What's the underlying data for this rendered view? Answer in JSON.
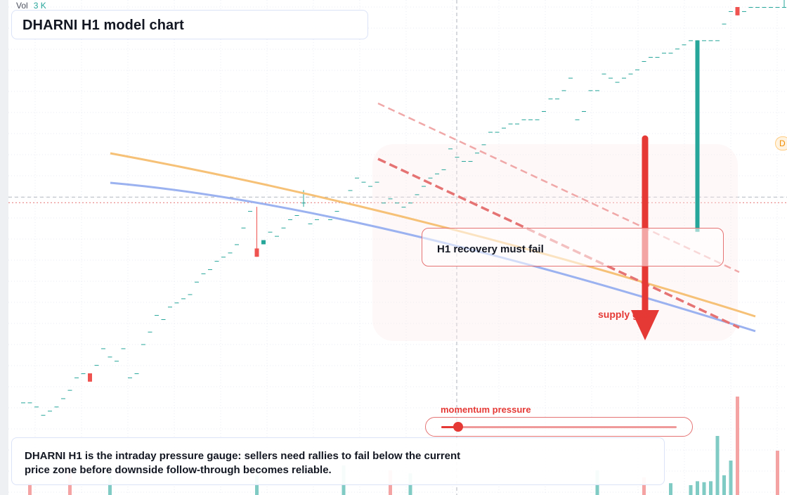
{
  "header": {
    "vol_label": "Vol",
    "vol_value": "3 K",
    "title": "DHARNI H1 model chart"
  },
  "annotations": {
    "callout": "H1 recovery must fail",
    "supply_label": "supply gate",
    "momentum_label": "momentum pressure",
    "description": "DHARNI H1 is the intraday pressure gauge: sellers need rallies to fail below the current price zone before downside follow-through becomes reliable.",
    "side_badge": "D"
  },
  "gauge": {
    "level": 0.07
  },
  "colors": {
    "up": "#26a69a",
    "down": "#ef5350",
    "down_strong": "#e53935",
    "trend_orange": "#f6c177",
    "trend_blue": "#9bb2f0",
    "channel_red": "#e57373",
    "grid": "#e8ebf3"
  },
  "chart_data": {
    "type": "candlestick",
    "y_range": [
      0,
      100
    ],
    "current_price": 53,
    "candles": [
      {
        "o": 5,
        "h": 5,
        "l": 5,
        "c": 5
      },
      {
        "o": 5,
        "h": 5,
        "l": 5,
        "c": 5
      },
      {
        "o": 4,
        "h": 4,
        "l": 4,
        "c": 4
      },
      {
        "o": 2,
        "h": 2,
        "l": 2,
        "c": 2
      },
      {
        "o": 3,
        "h": 3,
        "l": 3,
        "c": 3
      },
      {
        "o": 4,
        "h": 4,
        "l": 4,
        "c": 4
      },
      {
        "o": 6,
        "h": 6,
        "l": 6,
        "c": 6
      },
      {
        "o": 8,
        "h": 8,
        "l": 8,
        "c": 8
      },
      {
        "o": 11,
        "h": 11,
        "l": 11,
        "c": 11
      },
      {
        "o": 12,
        "h": 12,
        "l": 12,
        "c": 12
      },
      {
        "o": 12,
        "h": 12,
        "l": 10,
        "c": 10
      },
      {
        "o": 14,
        "h": 14,
        "l": 14,
        "c": 14
      },
      {
        "o": 18,
        "h": 18,
        "l": 18,
        "c": 18
      },
      {
        "o": 16,
        "h": 16,
        "l": 16,
        "c": 16
      },
      {
        "o": 15,
        "h": 15,
        "l": 15,
        "c": 15
      },
      {
        "o": 18,
        "h": 18,
        "l": 18,
        "c": 18
      },
      {
        "o": 11,
        "h": 11,
        "l": 11,
        "c": 11
      },
      {
        "o": 12,
        "h": 12,
        "l": 12,
        "c": 12
      },
      {
        "o": 19,
        "h": 19,
        "l": 19,
        "c": 19
      },
      {
        "o": 22,
        "h": 22,
        "l": 22,
        "c": 22
      },
      {
        "o": 26,
        "h": 26,
        "l": 26,
        "c": 26
      },
      {
        "o": 25,
        "h": 25,
        "l": 25,
        "c": 25
      },
      {
        "o": 28,
        "h": 28,
        "l": 28,
        "c": 28
      },
      {
        "o": 29,
        "h": 29,
        "l": 29,
        "c": 29
      },
      {
        "o": 30,
        "h": 30,
        "l": 30,
        "c": 30
      },
      {
        "o": 31,
        "h": 31,
        "l": 31,
        "c": 31
      },
      {
        "o": 34,
        "h": 34,
        "l": 34,
        "c": 34
      },
      {
        "o": 36,
        "h": 36,
        "l": 36,
        "c": 36
      },
      {
        "o": 37,
        "h": 37,
        "l": 37,
        "c": 37
      },
      {
        "o": 39,
        "h": 39,
        "l": 39,
        "c": 39
      },
      {
        "o": 40,
        "h": 40,
        "l": 40,
        "c": 40
      },
      {
        "o": 41,
        "h": 41,
        "l": 41,
        "c": 41
      },
      {
        "o": 43,
        "h": 43,
        "l": 43,
        "c": 43
      },
      {
        "o": 47,
        "h": 47,
        "l": 47,
        "c": 47
      },
      {
        "o": 51,
        "h": 51,
        "l": 51,
        "c": 51
      },
      {
        "o": 42,
        "h": 52,
        "l": 40,
        "c": 40
      },
      {
        "o": 43,
        "h": 44,
        "l": 43,
        "c": 44
      },
      {
        "o": 46,
        "h": 46,
        "l": 46,
        "c": 46
      },
      {
        "o": 45,
        "h": 45,
        "l": 45,
        "c": 45
      },
      {
        "o": 47,
        "h": 47,
        "l": 47,
        "c": 47
      },
      {
        "o": 49,
        "h": 49,
        "l": 49,
        "c": 49
      },
      {
        "o": 50,
        "h": 50,
        "l": 50,
        "c": 50
      },
      {
        "o": 53,
        "h": 56,
        "l": 52,
        "c": 53
      },
      {
        "o": 48,
        "h": 48,
        "l": 48,
        "c": 48
      },
      {
        "o": 49,
        "h": 49,
        "l": 49,
        "c": 49
      },
      {
        "o": 50,
        "h": 50,
        "l": 50,
        "c": 50
      },
      {
        "o": 49,
        "h": 49,
        "l": 49,
        "c": 49
      },
      {
        "o": 51,
        "h": 51,
        "l": 51,
        "c": 51
      },
      {
        "o": 53,
        "h": 53,
        "l": 53,
        "c": 53
      },
      {
        "o": 56,
        "h": 56,
        "l": 56,
        "c": 56
      },
      {
        "o": 59,
        "h": 59,
        "l": 59,
        "c": 59
      },
      {
        "o": 58,
        "h": 58,
        "l": 58,
        "c": 58
      },
      {
        "o": 57,
        "h": 57,
        "l": 57,
        "c": 57
      },
      {
        "o": 58,
        "h": 58,
        "l": 58,
        "c": 58
      },
      {
        "o": 53,
        "h": 53,
        "l": 53,
        "c": 53
      },
      {
        "o": 54,
        "h": 54,
        "l": 54,
        "c": 54
      },
      {
        "o": 53,
        "h": 53,
        "l": 53,
        "c": 53
      },
      {
        "o": 52,
        "h": 52,
        "l": 52,
        "c": 52
      },
      {
        "o": 53,
        "h": 53,
        "l": 53,
        "c": 53
      },
      {
        "o": 55,
        "h": 55,
        "l": 55,
        "c": 55
      },
      {
        "o": 57,
        "h": 57,
        "l": 57,
        "c": 57
      },
      {
        "o": 59,
        "h": 59,
        "l": 59,
        "c": 59
      },
      {
        "o": 60,
        "h": 60,
        "l": 60,
        "c": 60
      },
      {
        "o": 61,
        "h": 61,
        "l": 61,
        "c": 61
      },
      {
        "o": 66,
        "h": 66,
        "l": 66,
        "c": 66
      },
      {
        "o": 64,
        "h": 64,
        "l": 64,
        "c": 64
      },
      {
        "o": 63,
        "h": 63,
        "l": 63,
        "c": 63
      },
      {
        "o": 63,
        "h": 63,
        "l": 63,
        "c": 63
      },
      {
        "o": 65,
        "h": 65,
        "l": 65,
        "c": 65
      },
      {
        "o": 67,
        "h": 67,
        "l": 67,
        "c": 67
      },
      {
        "o": 70,
        "h": 70,
        "l": 70,
        "c": 70
      },
      {
        "o": 70,
        "h": 70,
        "l": 70,
        "c": 70
      },
      {
        "o": 71,
        "h": 71,
        "l": 71,
        "c": 71
      },
      {
        "o": 72,
        "h": 72,
        "l": 72,
        "c": 72
      },
      {
        "o": 72,
        "h": 72,
        "l": 72,
        "c": 72
      },
      {
        "o": 73,
        "h": 73,
        "l": 73,
        "c": 73
      },
      {
        "o": 73,
        "h": 73,
        "l": 73,
        "c": 73
      },
      {
        "o": 73,
        "h": 73,
        "l": 73,
        "c": 73
      },
      {
        "o": 75,
        "h": 75,
        "l": 75,
        "c": 75
      },
      {
        "o": 78,
        "h": 78,
        "l": 78,
        "c": 78
      },
      {
        "o": 78,
        "h": 78,
        "l": 78,
        "c": 78
      },
      {
        "o": 80,
        "h": 80,
        "l": 80,
        "c": 80
      },
      {
        "o": 83,
        "h": 83,
        "l": 83,
        "c": 83
      },
      {
        "o": 73,
        "h": 73,
        "l": 73,
        "c": 73
      },
      {
        "o": 75,
        "h": 75,
        "l": 75,
        "c": 75
      },
      {
        "o": 80,
        "h": 80,
        "l": 80,
        "c": 80
      },
      {
        "o": 80,
        "h": 80,
        "l": 80,
        "c": 80
      },
      {
        "o": 84,
        "h": 84,
        "l": 84,
        "c": 84
      },
      {
        "o": 83,
        "h": 83,
        "l": 83,
        "c": 83
      },
      {
        "o": 82,
        "h": 82,
        "l": 82,
        "c": 82
      },
      {
        "o": 83,
        "h": 83,
        "l": 83,
        "c": 83
      },
      {
        "o": 84,
        "h": 84,
        "l": 84,
        "c": 84
      },
      {
        "o": 85,
        "h": 85,
        "l": 85,
        "c": 85
      },
      {
        "o": 87,
        "h": 87,
        "l": 87,
        "c": 87
      },
      {
        "o": 88,
        "h": 88,
        "l": 88,
        "c": 88
      },
      {
        "o": 88,
        "h": 88,
        "l": 88,
        "c": 88
      },
      {
        "o": 89,
        "h": 89,
        "l": 89,
        "c": 89
      },
      {
        "o": 89,
        "h": 89,
        "l": 89,
        "c": 89
      },
      {
        "o": 90,
        "h": 90,
        "l": 90,
        "c": 90
      },
      {
        "o": 91,
        "h": 91,
        "l": 91,
        "c": 91
      },
      {
        "o": 92,
        "h": 92,
        "l": 92,
        "c": 92
      },
      {
        "o": 46,
        "h": 92,
        "l": 46,
        "c": 92
      },
      {
        "o": 92,
        "h": 92,
        "l": 92,
        "c": 92
      },
      {
        "o": 92,
        "h": 92,
        "l": 92,
        "c": 92
      },
      {
        "o": 92,
        "h": 92,
        "l": 92,
        "c": 92
      },
      {
        "o": 96,
        "h": 96,
        "l": 96,
        "c": 96
      },
      {
        "o": 99,
        "h": 99,
        "l": 99,
        "c": 99
      },
      {
        "o": 100,
        "h": 100,
        "l": 98,
        "c": 98
      },
      {
        "o": 99,
        "h": 99,
        "l": 99,
        "c": 99
      },
      {
        "o": 100,
        "h": 100,
        "l": 100,
        "c": 100
      },
      {
        "o": 100,
        "h": 100,
        "l": 100,
        "c": 100
      },
      {
        "o": 100,
        "h": 100,
        "l": 100,
        "c": 100
      },
      {
        "o": 100,
        "h": 100,
        "l": 100,
        "c": 100
      },
      {
        "o": 100,
        "h": 100,
        "l": 100,
        "c": 100
      },
      {
        "o": 100,
        "h": 108,
        "l": 100,
        "c": 100
      }
    ],
    "volumes": [
      {
        "i": 1,
        "v": 0.12,
        "d": "down"
      },
      {
        "i": 7,
        "v": 0.28,
        "d": "down"
      },
      {
        "i": 13,
        "v": 0.2,
        "d": "up"
      },
      {
        "i": 35,
        "v": 0.2,
        "d": "up"
      },
      {
        "i": 48,
        "v": 0.3,
        "d": "up"
      },
      {
        "i": 55,
        "v": 0.25,
        "d": "down"
      },
      {
        "i": 58,
        "v": 0.22,
        "d": "up"
      },
      {
        "i": 86,
        "v": 0.25,
        "d": "up"
      },
      {
        "i": 93,
        "v": 0.18,
        "d": "down"
      },
      {
        "i": 97,
        "v": 0.12,
        "d": "up"
      },
      {
        "i": 100,
        "v": 0.1,
        "d": "up"
      },
      {
        "i": 101,
        "v": 0.14,
        "d": "up"
      },
      {
        "i": 102,
        "v": 0.13,
        "d": "up"
      },
      {
        "i": 103,
        "v": 0.14,
        "d": "up"
      },
      {
        "i": 104,
        "v": 0.6,
        "d": "up"
      },
      {
        "i": 105,
        "v": 0.2,
        "d": "up"
      },
      {
        "i": 106,
        "v": 0.35,
        "d": "up"
      },
      {
        "i": 107,
        "v": 1.0,
        "d": "down"
      },
      {
        "i": 113,
        "v": 0.45,
        "d": "down"
      }
    ]
  }
}
